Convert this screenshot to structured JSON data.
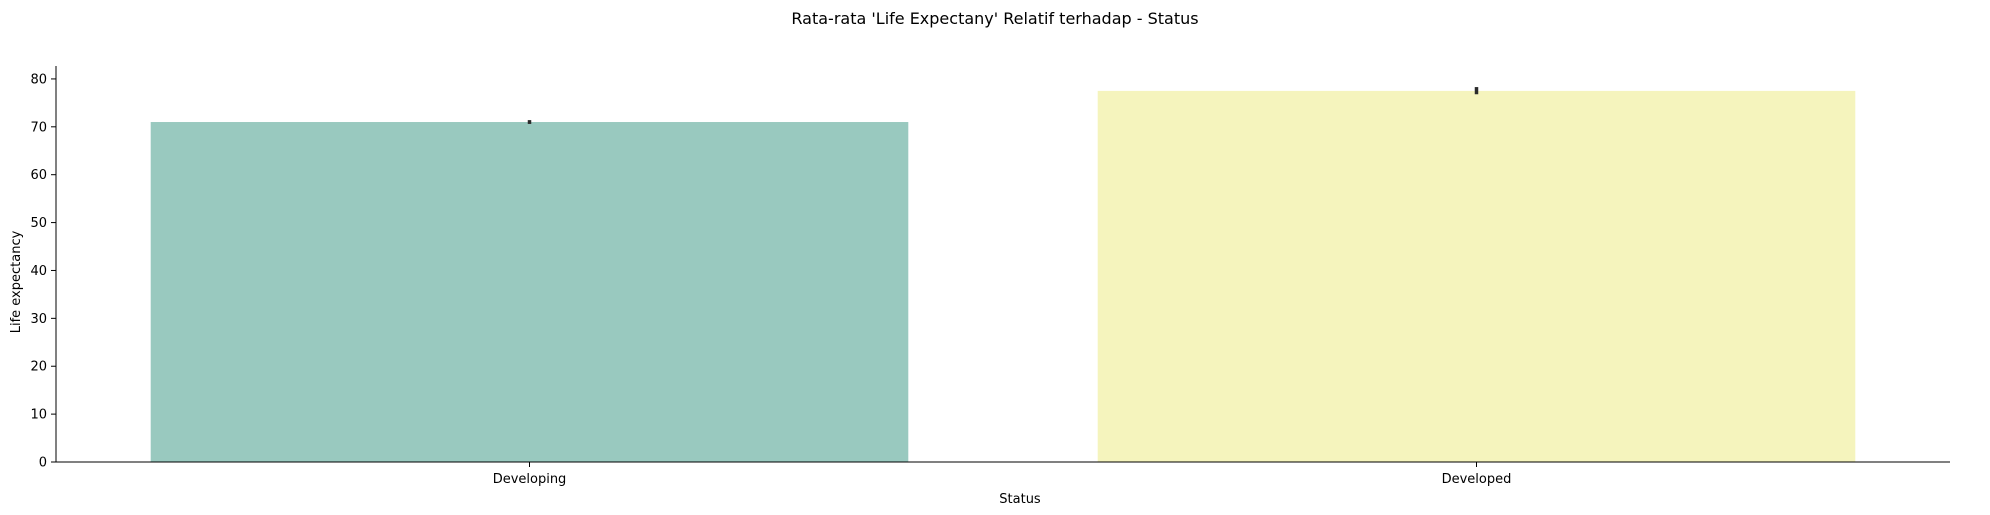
{
  "chart_data": {
    "type": "bar",
    "title": "Rata-rata 'Life Expectany' Relatif terhadap - Status",
    "xlabel": "Status",
    "ylabel": "Life expectancy",
    "categories": [
      "Developing",
      "Developed"
    ],
    "values": [
      71.0,
      77.5
    ],
    "error_low": [
      70.6,
      76.8
    ],
    "error_high": [
      71.4,
      78.3
    ],
    "ylim": [
      0,
      82.7
    ],
    "yticks": [
      0,
      10,
      20,
      30,
      40,
      50,
      60,
      70,
      80
    ],
    "colors": [
      "#99c9bf",
      "#f5f4bd"
    ],
    "error_color": "#2b2b2b",
    "grid": false,
    "legend": "none"
  }
}
